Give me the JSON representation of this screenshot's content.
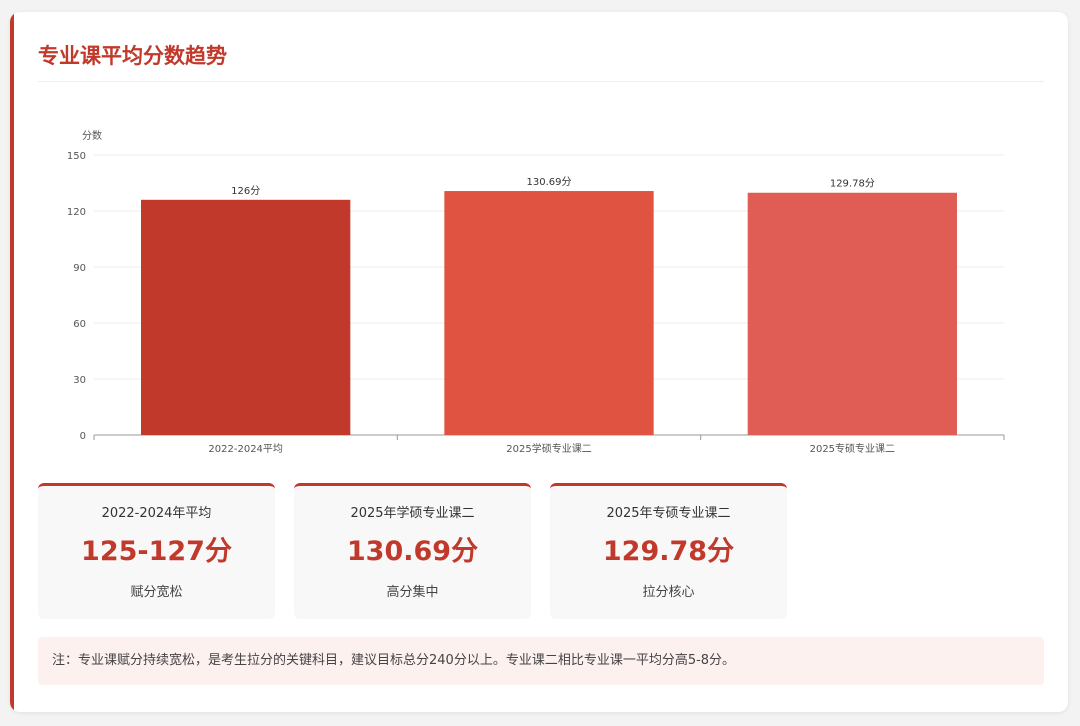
{
  "page": {
    "title": "专业课平均分数趋势"
  },
  "chart_data": {
    "type": "bar",
    "ylabel": "分数",
    "ylim": [
      0,
      150
    ],
    "yticks": [
      0,
      30,
      60,
      90,
      120,
      150
    ],
    "grid": true,
    "categories": [
      "2022-2024平均",
      "2025学硕专业课二",
      "2025专硕专业课二"
    ],
    "values": [
      126,
      130.69,
      129.78
    ],
    "data_labels": [
      "126分",
      "130.69分",
      "129.78分"
    ],
    "colors": [
      "#c0392b",
      "#e05340",
      "#e05d55"
    ]
  },
  "stats": [
    {
      "label": "2022-2024年平均",
      "value": "125-127分",
      "note": "赋分宽松"
    },
    {
      "label": "2025年学硕专业课二",
      "value": "130.69分",
      "note": "高分集中"
    },
    {
      "label": "2025年专硕专业课二",
      "value": "129.78分",
      "note": "拉分核心"
    }
  ],
  "note": "注：专业课赋分持续宽松，是考生拉分的关键科目，建议目标总分240分以上。专业课二相比专业课一平均分高5-8分。"
}
